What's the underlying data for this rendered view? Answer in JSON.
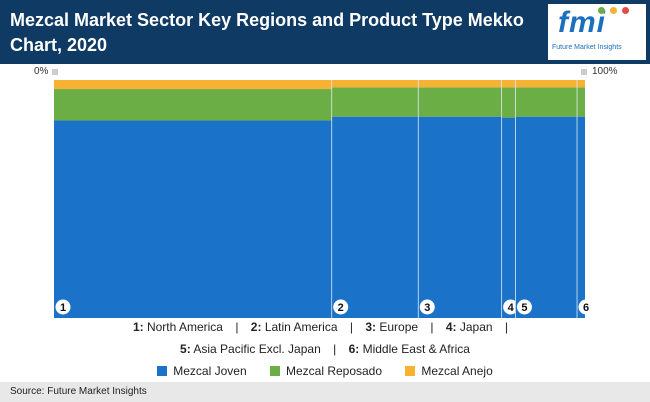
{
  "header": {
    "title": "Mezcal Market Sector Key Regions and Product Type Mekko Chart, 2020",
    "logo_mark": "fmi",
    "logo_text": "Future Market Insights"
  },
  "axis": {
    "left_label": "0%",
    "right_label": "100%"
  },
  "chart_data": {
    "type": "mekko",
    "x_unit": "%",
    "xlim": [
      0,
      100
    ],
    "ylim": [
      0,
      100
    ],
    "categories": [
      "1",
      "2",
      "3",
      "4",
      "5",
      "6"
    ],
    "category_widths": [
      52.3,
      16.3,
      15.7,
      2.6,
      11.6,
      1.5
    ],
    "series": [
      {
        "name": "Mezcal Joven",
        "color": "#1a73c8",
        "values": [
          83.0,
          84.6,
          84.6,
          84.2,
          84.6,
          84.6
        ]
      },
      {
        "name": "Mezcal Reposado",
        "color": "#6cae46",
        "values": [
          13.2,
          12.3,
          12.3,
          12.7,
          12.3,
          12.3
        ]
      },
      {
        "name": "Mezcal Anejo",
        "color": "#f7b233",
        "values": [
          3.8,
          3.1,
          3.1,
          3.1,
          3.1,
          3.1
        ]
      }
    ]
  },
  "region_legend": {
    "line1": [
      {
        "num": "1:",
        "name": "North America"
      },
      {
        "num": "2:",
        "name": "Latin America"
      },
      {
        "num": "3:",
        "name": "Europe"
      },
      {
        "num": "4:",
        "name": "Japan"
      }
    ],
    "line2": [
      {
        "num": "5:",
        "name": "Asia Pacific Excl. Japan"
      },
      {
        "num": "6:",
        "name": "Middle East & Africa"
      }
    ],
    "separator": "|"
  },
  "footer": {
    "source": "Source: Future Market Insights"
  }
}
